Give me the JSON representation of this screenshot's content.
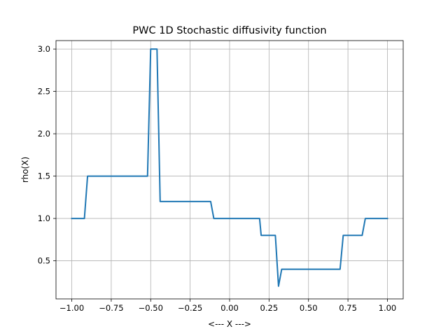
{
  "chart_data": {
    "type": "line",
    "title": "PWC 1D Stochastic diffusivity function",
    "xlabel": "<--- X --->",
    "ylabel": "rho(X)",
    "xlim": [
      -1.1,
      1.1
    ],
    "ylim": [
      0.05,
      3.1
    ],
    "grid": true,
    "xticks": [
      -1.0,
      -0.75,
      -0.5,
      -0.25,
      0.0,
      0.25,
      0.5,
      0.75,
      1.0
    ],
    "xtick_labels": [
      "−1.00",
      "−0.75",
      "−0.50",
      "−0.25",
      "0.00",
      "0.25",
      "0.50",
      "0.75",
      "1.00"
    ],
    "yticks": [
      0.5,
      1.0,
      1.5,
      2.0,
      2.5,
      3.0
    ],
    "ytick_labels": [
      "0.5",
      "1.0",
      "1.5",
      "2.0",
      "2.5",
      "3.0"
    ],
    "line_color": "#1f77b4",
    "series": [
      {
        "x": [
          -1.0,
          -0.92,
          -0.9,
          -0.52,
          -0.5,
          -0.46,
          -0.44,
          -0.12,
          -0.1,
          0.19,
          0.2,
          0.29,
          0.31,
          0.33,
          0.7,
          0.72,
          0.84,
          0.86,
          1.0
        ],
        "y": [
          1.0,
          1.0,
          1.5,
          1.5,
          3.0,
          3.0,
          1.2,
          1.2,
          1.0,
          1.0,
          0.8,
          0.8,
          0.2,
          0.4,
          0.4,
          0.8,
          0.8,
          1.0,
          1.0
        ]
      }
    ]
  }
}
